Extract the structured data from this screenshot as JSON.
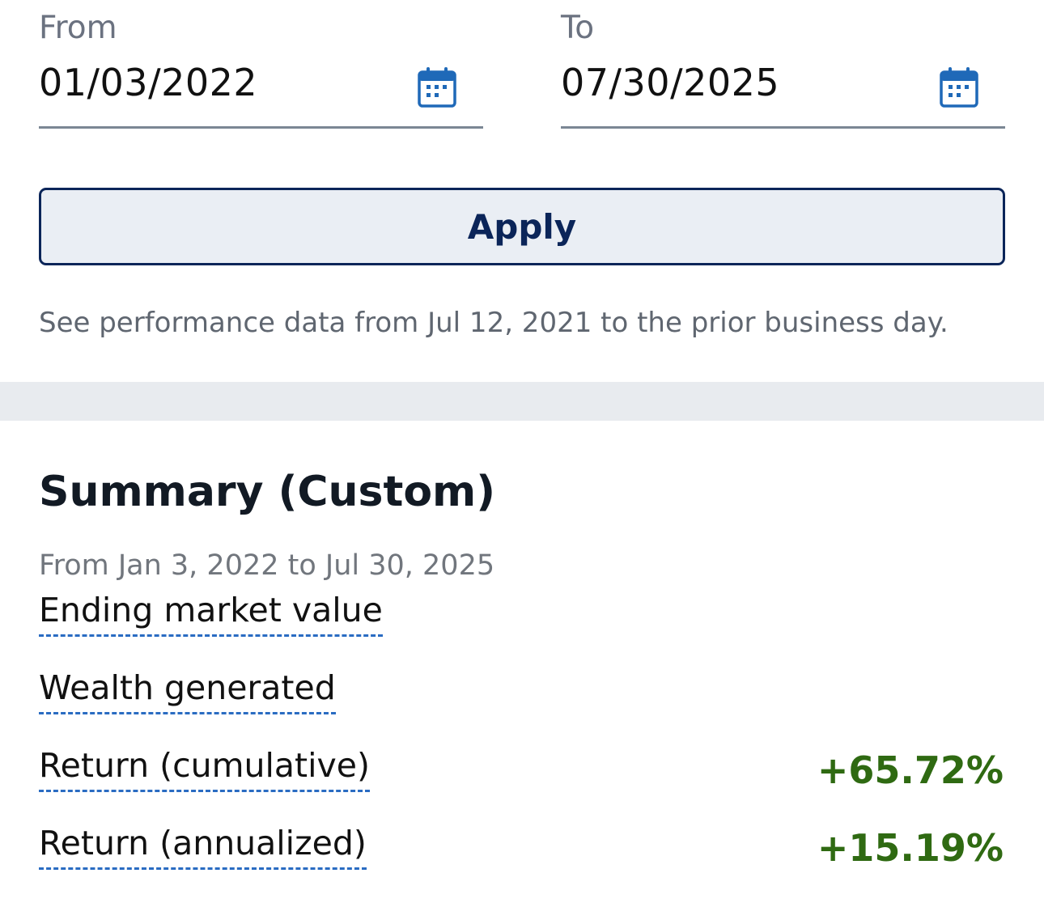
{
  "date_range": {
    "from": {
      "label": "From",
      "value": "01/03/2022",
      "icon": "calendar-icon"
    },
    "to": {
      "label": "To",
      "value": "07/30/2025",
      "icon": "calendar-icon"
    }
  },
  "apply_button": {
    "label": "Apply"
  },
  "availability_note": "See performance data from Jul 12, 2021 to the prior business day.",
  "summary": {
    "title": "Summary (Custom)",
    "range": "From Jan 3, 2022 to Jul 30, 2025",
    "metrics": [
      {
        "label": "Ending market value",
        "value": ""
      },
      {
        "label": "Wealth generated",
        "value": ""
      },
      {
        "label": "Return (cumulative)",
        "value": "+65.72%"
      },
      {
        "label": "Return (annualized)",
        "value": "+15.19%"
      }
    ]
  },
  "colors": {
    "accent_navy": "#0b2559",
    "calendar_blue": "#1f69b8",
    "positive_green": "#2f6a12",
    "divider_gray": "#e8ebef"
  }
}
